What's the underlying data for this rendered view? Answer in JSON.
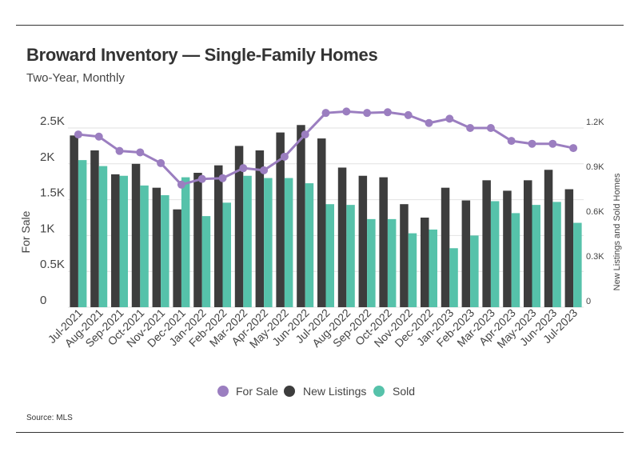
{
  "header": {
    "title": "Broward Inventory — Single-Family Homes",
    "subtitle": "Two-Year, Monthly"
  },
  "footer": {
    "source": "Source: MLS"
  },
  "colors": {
    "for_sale": "#9b7ec0",
    "new_listings": "#3d3d3d",
    "sold": "#56c2aa",
    "grid": "#e2e2e2"
  },
  "chart_data": {
    "type": "bar",
    "categories": [
      "Jul-2021",
      "Aug-2021",
      "Sep-2021",
      "Oct-2021",
      "Nov-2021",
      "Dec-2021",
      "Jan-2022",
      "Feb-2022",
      "Mar-2022",
      "Apr-2022",
      "May-2022",
      "Jun-2022",
      "Jul-2022",
      "Aug-2022",
      "Sep-2022",
      "Oct-2022",
      "Nov-2022",
      "Dec-2022",
      "Jan-2023",
      "Feb-2023",
      "Mar-2023",
      "Apr-2023",
      "May-2023",
      "Jun-2023",
      "Jul-2023"
    ],
    "left_axis": {
      "label": "For Sale",
      "ticks": [
        "0",
        "0.5K",
        "1K",
        "1.5K",
        "2K",
        "2.5K"
      ],
      "ylim": [
        0,
        2500
      ]
    },
    "right_axis": {
      "label": "New Listings and Sold Homes",
      "ticks": [
        "0",
        "0.3K",
        "0.6K",
        "0.9K",
        "1.2K"
      ],
      "ylim": [
        0,
        1200
      ]
    },
    "series": [
      {
        "name": "For Sale",
        "type": "line",
        "axis": "left",
        "values": [
          2410,
          2380,
          2180,
          2160,
          2010,
          1710,
          1790,
          1800,
          1940,
          1910,
          2100,
          2410,
          2710,
          2730,
          2710,
          2720,
          2680,
          2570,
          2630,
          2500,
          2500,
          2320,
          2280,
          2280,
          2220
        ]
      },
      {
        "name": "New Listings",
        "type": "bar",
        "axis": "right",
        "values": [
          1150,
          1050,
          890,
          960,
          800,
          655,
          900,
          950,
          1080,
          1050,
          1170,
          1220,
          1130,
          935,
          880,
          870,
          690,
          600,
          800,
          715,
          850,
          780,
          850,
          920,
          790
        ]
      },
      {
        "name": "Sold",
        "type": "bar",
        "axis": "right",
        "values": [
          985,
          945,
          880,
          815,
          750,
          870,
          610,
          700,
          880,
          865,
          865,
          830,
          690,
          685,
          590,
          590,
          495,
          520,
          395,
          480,
          710,
          630,
          685,
          705,
          565
        ]
      }
    ],
    "legend": {
      "position": "bottom",
      "items": [
        "For Sale",
        "New Listings",
        "Sold"
      ]
    },
    "grid": true
  }
}
